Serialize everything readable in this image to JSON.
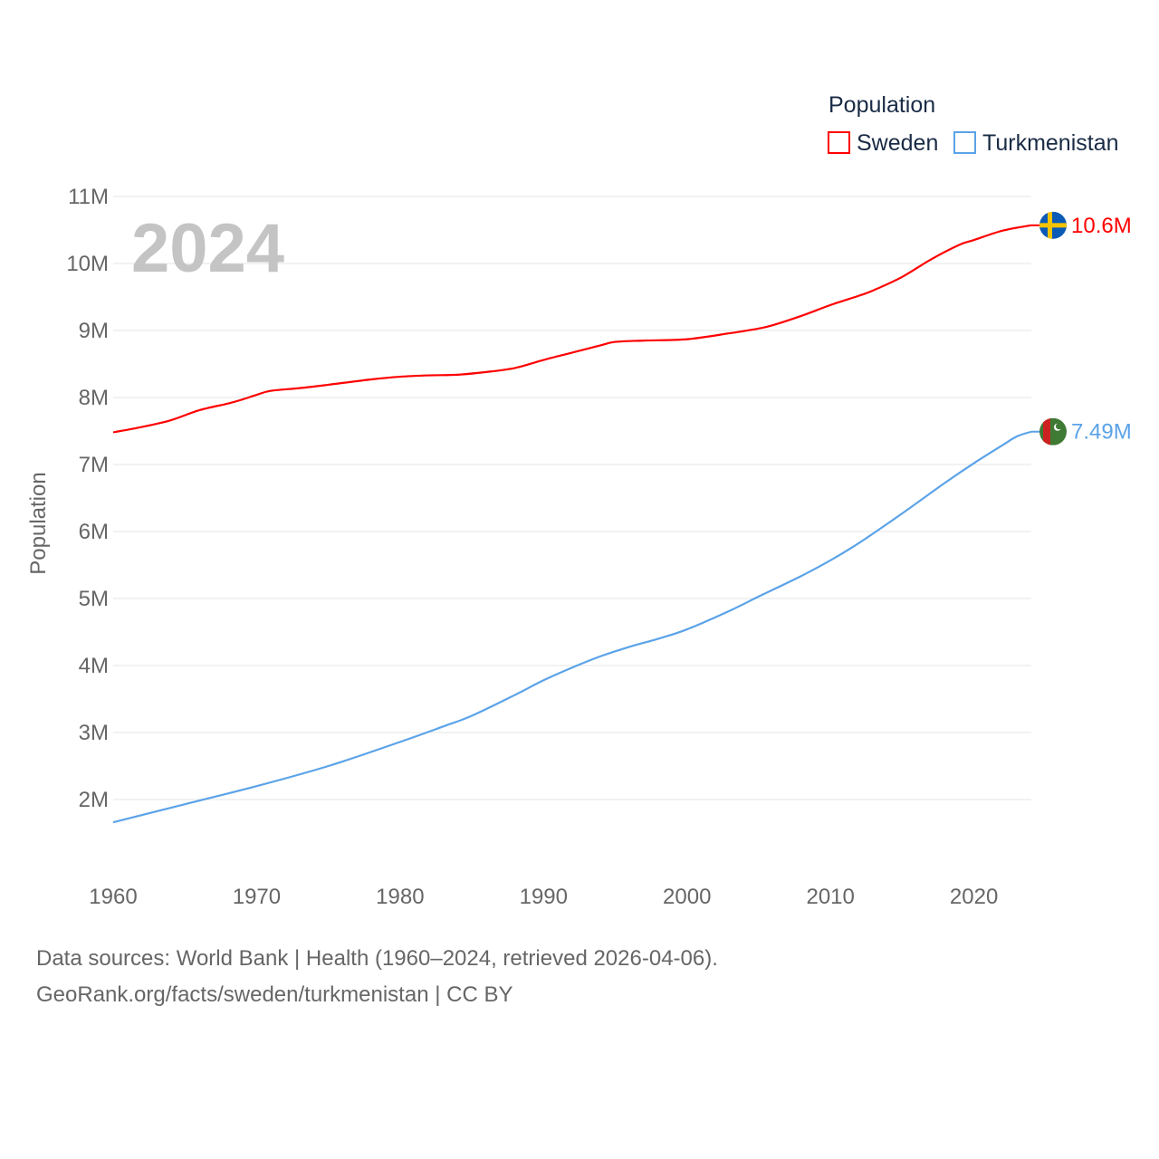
{
  "chart_data": {
    "type": "line",
    "title": "",
    "watermark_year": "2024",
    "xlabel": "",
    "ylabel": "Population",
    "xlim": [
      1960,
      2024
    ],
    "ylim": [
      1000000,
      11000000
    ],
    "x_ticks": [
      "1960",
      "1970",
      "1980",
      "1990",
      "2000",
      "2010",
      "2020"
    ],
    "y_ticks": [
      {
        "value": 2000000,
        "label": "2M"
      },
      {
        "value": 3000000,
        "label": "3M"
      },
      {
        "value": 4000000,
        "label": "4M"
      },
      {
        "value": 5000000,
        "label": "5M"
      },
      {
        "value": 6000000,
        "label": "6M"
      },
      {
        "value": 7000000,
        "label": "7M"
      },
      {
        "value": 8000000,
        "label": "8M"
      },
      {
        "value": 9000000,
        "label": "9M"
      },
      {
        "value": 10000000,
        "label": "10M"
      },
      {
        "value": 11000000,
        "label": "11M"
      }
    ],
    "grid": true,
    "legend": {
      "title": "Population",
      "placement": "top-right"
    },
    "series": [
      {
        "name": "Sweden",
        "color": "#ff0000",
        "end_label": "10.6M",
        "flag": "sweden-flag",
        "x": [
          1960,
          1962,
          1964,
          1966,
          1968,
          1969,
          1970,
          1971,
          1973,
          1975,
          1978,
          1980,
          1982,
          1984,
          1986,
          1988,
          1990,
          1992,
          1994,
          1995,
          1997,
          2000,
          2003,
          2005,
          2006,
          2008,
          2010,
          2012,
          2013,
          2015,
          2017,
          2019,
          2020,
          2022,
          2024
        ],
        "values": [
          7480000,
          7560000,
          7660000,
          7810000,
          7910000,
          7970000,
          8040000,
          8100000,
          8140000,
          8190000,
          8270000,
          8310000,
          8330000,
          8340000,
          8380000,
          8440000,
          8560000,
          8670000,
          8780000,
          8830000,
          8850000,
          8870000,
          8960000,
          9030000,
          9080000,
          9220000,
          9380000,
          9520000,
          9600000,
          9800000,
          10060000,
          10280000,
          10350000,
          10490000,
          10570000
        ]
      },
      {
        "name": "Turkmenistan",
        "color": "#5ba3e8",
        "end_label": "7.49M",
        "flag": "turkmenistan-flag",
        "x": [
          1960,
          1965,
          1970,
          1975,
          1980,
          1983,
          1985,
          1988,
          1990,
          1992,
          1994,
          1996,
          1998,
          2000,
          2003,
          2005,
          2008,
          2010,
          2012,
          2015,
          2018,
          2020,
          2022,
          2023,
          2024
        ],
        "values": [
          1660000,
          1930000,
          2200000,
          2500000,
          2860000,
          3090000,
          3250000,
          3560000,
          3780000,
          3970000,
          4140000,
          4280000,
          4400000,
          4540000,
          4820000,
          5030000,
          5340000,
          5570000,
          5830000,
          6270000,
          6730000,
          7020000,
          7290000,
          7420000,
          7490000
        ]
      }
    ]
  },
  "footer": {
    "line1": "Data sources: World Bank | Health (1960–2024, retrieved 2026-04-06).",
    "line2": "GeoRank.org/facts/sweden/turkmenistan | CC BY"
  }
}
